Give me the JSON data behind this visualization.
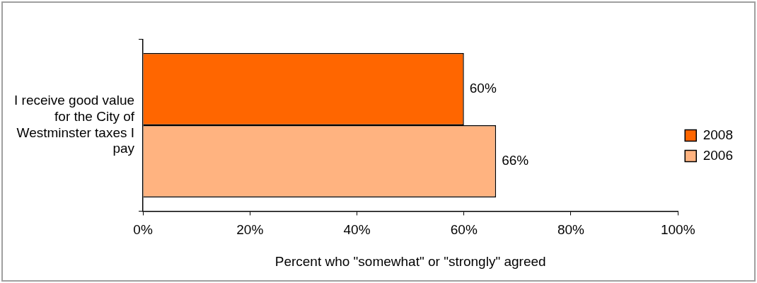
{
  "chart_data": {
    "type": "bar",
    "orientation": "horizontal",
    "xlabel": "Percent who \"somewhat\" or \"strongly\" agreed",
    "categories": [
      "I receive good value for the City of Westminster taxes I pay"
    ],
    "series": [
      {
        "name": "2008",
        "color": "#ff6600",
        "values": [
          60
        ],
        "value_labels": [
          "60%"
        ]
      },
      {
        "name": "2006",
        "color": "#ffb380",
        "values": [
          66
        ],
        "value_labels": [
          "66%"
        ]
      }
    ],
    "xlim": [
      0,
      100
    ],
    "xticks": [
      {
        "value": 0,
        "label": "0%"
      },
      {
        "value": 20,
        "label": "20%"
      },
      {
        "value": 40,
        "label": "40%"
      },
      {
        "value": 60,
        "label": "60%"
      },
      {
        "value": 80,
        "label": "80%"
      },
      {
        "value": 100,
        "label": "100%"
      }
    ],
    "grid": false,
    "legend": "right"
  }
}
